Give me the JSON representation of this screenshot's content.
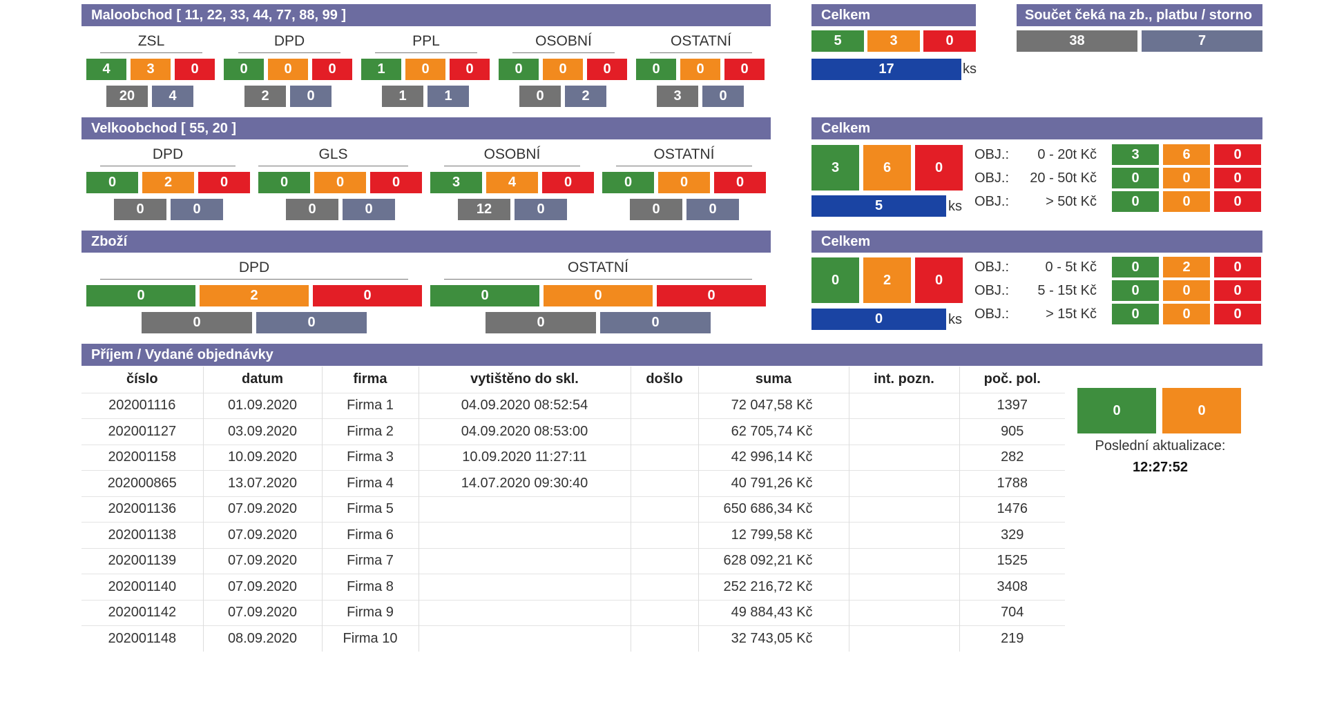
{
  "colors": {
    "header": "#6c6ca0",
    "green": "#3e8e3e",
    "orange": "#f28a1e",
    "red": "#e31e26",
    "gray": "#737373",
    "slate": "#6b7391",
    "blue": "#1a44a3"
  },
  "retail": {
    "title": "Maloobchod [ 11, 22, 33, 44, 77, 88, 99 ]",
    "groups": [
      {
        "label": "ZSL",
        "green": "4",
        "orange": "3",
        "red": "0",
        "gray": "20",
        "slate": "4"
      },
      {
        "label": "DPD",
        "green": "0",
        "orange": "0",
        "red": "0",
        "gray": "2",
        "slate": "0"
      },
      {
        "label": "PPL",
        "green": "1",
        "orange": "0",
        "red": "0",
        "gray": "1",
        "slate": "1"
      },
      {
        "label": "OSOBNÍ",
        "green": "0",
        "orange": "0",
        "red": "0",
        "gray": "0",
        "slate": "2"
      },
      {
        "label": "OSTATNÍ",
        "green": "0",
        "orange": "0",
        "red": "0",
        "gray": "3",
        "slate": "0"
      }
    ]
  },
  "total1": {
    "title": "Celkem",
    "green": "5",
    "orange": "3",
    "red": "0",
    "blue": "17",
    "unit": "ks"
  },
  "pending": {
    "title": "Součet čeká na zb., platbu / storno",
    "gray": "38",
    "slate": "7"
  },
  "wholesale": {
    "title": "Velkoobchod [ 55, 20 ]",
    "groups": [
      {
        "label": "DPD",
        "green": "0",
        "orange": "2",
        "red": "0",
        "gray": "0",
        "slate": "0"
      },
      {
        "label": "GLS",
        "green": "0",
        "orange": "0",
        "red": "0",
        "gray": "0",
        "slate": "0"
      },
      {
        "label": "OSOBNÍ",
        "green": "3",
        "orange": "4",
        "red": "0",
        "gray": "12",
        "slate": "0"
      },
      {
        "label": "OSTATNÍ",
        "green": "0",
        "orange": "0",
        "red": "0",
        "gray": "0",
        "slate": "0"
      }
    ]
  },
  "total2": {
    "title": "Celkem",
    "green": "3",
    "orange": "6",
    "red": "0",
    "blue": "5",
    "unit": "ks",
    "rows": [
      {
        "prefix": "OBJ.:",
        "range": "0 - 20t Kč",
        "green": "3",
        "orange": "6",
        "red": "0"
      },
      {
        "prefix": "OBJ.:",
        "range": "20 - 50t Kč",
        "green": "0",
        "orange": "0",
        "red": "0"
      },
      {
        "prefix": "OBJ.:",
        "range": "> 50t Kč",
        "green": "0",
        "orange": "0",
        "red": "0"
      }
    ]
  },
  "goods": {
    "title": "Zboží",
    "groups": [
      {
        "label": "DPD",
        "green": "0",
        "orange": "2",
        "red": "0",
        "gray": "0",
        "slate": "0"
      },
      {
        "label": "OSTATNÍ",
        "green": "0",
        "orange": "0",
        "red": "0",
        "gray": "0",
        "slate": "0"
      }
    ]
  },
  "total3": {
    "title": "Celkem",
    "green": "0",
    "orange": "2",
    "red": "0",
    "blue": "0",
    "unit": "ks",
    "rows": [
      {
        "prefix": "OBJ.:",
        "range": "0 - 5t Kč",
        "green": "0",
        "orange": "2",
        "red": "0"
      },
      {
        "prefix": "OBJ.:",
        "range": "5 - 15t Kč",
        "green": "0",
        "orange": "0",
        "red": "0"
      },
      {
        "prefix": "OBJ.:",
        "range": "> 15t Kč",
        "green": "0",
        "orange": "0",
        "red": "0"
      }
    ]
  },
  "orders": {
    "title": "Příjem / Vydané objednávky",
    "columns": [
      "číslo",
      "datum",
      "firma",
      "vytištěno do skl.",
      "došlo",
      "suma",
      "int. pozn.",
      "poč. pol."
    ],
    "rows": [
      [
        "202001116",
        "01.09.2020",
        "Firma 1",
        "04.09.2020 08:52:54",
        "",
        "72 047,58 Kč",
        "",
        "1397"
      ],
      [
        "202001127",
        "03.09.2020",
        "Firma 2",
        "04.09.2020 08:53:00",
        "",
        "62 705,74 Kč",
        "",
        "905"
      ],
      [
        "202001158",
        "10.09.2020",
        "Firma 3",
        "10.09.2020 11:27:11",
        "",
        "42 996,14 Kč",
        "",
        "282"
      ],
      [
        "202000865",
        "13.07.2020",
        "Firma 4",
        "14.07.2020 09:30:40",
        "",
        "40 791,26 Kč",
        "",
        "1788"
      ],
      [
        "202001136",
        "07.09.2020",
        "Firma 5",
        "",
        "",
        "650 686,34 Kč",
        "",
        "1476"
      ],
      [
        "202001138",
        "07.09.2020",
        "Firma 6",
        "",
        "",
        "12 799,58 Kč",
        "",
        "329"
      ],
      [
        "202001139",
        "07.09.2020",
        "Firma 7",
        "",
        "",
        "628 092,21 Kč",
        "",
        "1525"
      ],
      [
        "202001140",
        "07.09.2020",
        "Firma 8",
        "",
        "",
        "252 216,72 Kč",
        "",
        "3408"
      ],
      [
        "202001142",
        "07.09.2020",
        "Firma 9",
        "",
        "",
        "49 884,43 Kč",
        "",
        "704"
      ],
      [
        "202001148",
        "08.09.2020",
        "Firma 10",
        "",
        "",
        "32 743,05 Kč",
        "",
        "219"
      ]
    ]
  },
  "status": {
    "green": "0",
    "orange": "0",
    "label": "Poslední aktualizace:",
    "time": "12:27:52"
  }
}
